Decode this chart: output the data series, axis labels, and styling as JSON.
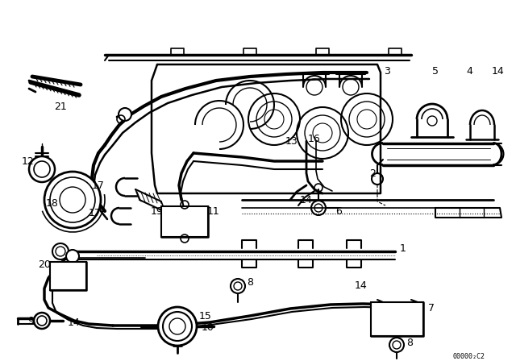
{
  "background_color": "#ffffff",
  "line_color": "#000000",
  "diagram_code": "00000₂C2",
  "figsize": [
    6.4,
    4.48
  ],
  "dpi": 100
}
